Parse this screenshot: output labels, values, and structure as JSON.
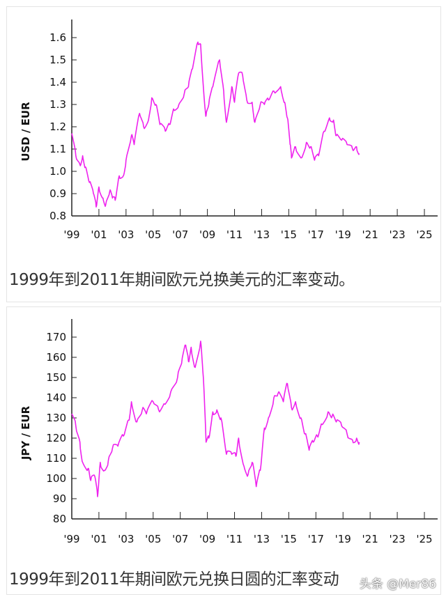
{
  "chart_data": [
    {
      "type": "line",
      "title": "",
      "xlabel": "",
      "ylabel": "USD / EUR",
      "xlim": [
        1999,
        2025.9
      ],
      "ylim": [
        0.8,
        1.7
      ],
      "yticks": [
        0.8,
        0.9,
        1.0,
        1.1,
        1.2,
        1.3,
        1.4,
        1.5,
        1.6
      ],
      "ytick_labels": [
        "0.8",
        "0.9",
        "1.0",
        "1.1",
        "1.2",
        "1.3",
        "1.4",
        "1.5",
        "1.6"
      ],
      "xticks": [
        1999,
        2001,
        2003,
        2005,
        2007,
        2009,
        2011,
        2013,
        2015,
        2017,
        2019,
        2021,
        2023,
        2025
      ],
      "xtick_labels": [
        "'99",
        "'01",
        "'03",
        "'05",
        "'07",
        "'09",
        "'11",
        "'13",
        "'15",
        "'17",
        "'19",
        "'21",
        "'23",
        "'25"
      ],
      "grid": false,
      "color": "#ee22ee",
      "series": [
        {
          "name": "USD/EUR",
          "x": [
            1999.0,
            1999.3,
            1999.6,
            1999.8,
            2000.0,
            2000.3,
            2000.6,
            2000.8,
            2001.0,
            2001.3,
            2001.5,
            2001.8,
            2002.0,
            2002.2,
            2002.5,
            2002.8,
            2003.0,
            2003.4,
            2003.6,
            2004.0,
            2004.3,
            2004.6,
            2004.9,
            2005.2,
            2005.5,
            2005.9,
            2006.2,
            2006.5,
            2006.9,
            2007.3,
            2007.6,
            2007.9,
            2008.3,
            2008.5,
            2008.8,
            2008.9,
            2009.1,
            2009.4,
            2009.9,
            2010.2,
            2010.4,
            2010.8,
            2011.0,
            2011.3,
            2011.6,
            2011.9,
            2012.3,
            2012.5,
            2012.9,
            2013.2,
            2013.5,
            2013.9,
            2014.4,
            2014.7,
            2014.9,
            2015.1,
            2015.2,
            2015.5,
            2015.9,
            2016.3,
            2016.6,
            2016.9,
            2017.2,
            2017.6,
            2018.0,
            2018.3,
            2018.5,
            2018.9,
            2019.3,
            2019.7,
            2020.0,
            2020.2
          ],
          "y": [
            1.17,
            1.07,
            1.03,
            1.07,
            1.02,
            0.95,
            0.9,
            0.84,
            0.93,
            0.88,
            0.85,
            0.91,
            0.88,
            0.87,
            0.98,
            0.98,
            1.05,
            1.16,
            1.12,
            1.26,
            1.2,
            1.22,
            1.33,
            1.3,
            1.21,
            1.18,
            1.21,
            1.28,
            1.3,
            1.35,
            1.38,
            1.46,
            1.58,
            1.57,
            1.3,
            1.25,
            1.3,
            1.38,
            1.5,
            1.36,
            1.22,
            1.38,
            1.31,
            1.44,
            1.43,
            1.32,
            1.31,
            1.22,
            1.3,
            1.3,
            1.32,
            1.36,
            1.38,
            1.31,
            1.24,
            1.12,
            1.06,
            1.11,
            1.06,
            1.13,
            1.11,
            1.05,
            1.07,
            1.18,
            1.24,
            1.23,
            1.16,
            1.14,
            1.12,
            1.1,
            1.11,
            1.08
          ]
        }
      ]
    },
    {
      "type": "line",
      "title": "",
      "xlabel": "",
      "ylabel": "JPY / EUR",
      "xlim": [
        1999,
        2025.9
      ],
      "ylim": [
        80,
        180
      ],
      "yticks": [
        80,
        90,
        100,
        110,
        120,
        130,
        140,
        150,
        160,
        170
      ],
      "ytick_labels": [
        "80",
        "90",
        "100",
        "110",
        "120",
        "130",
        "140",
        "150",
        "160",
        "170"
      ],
      "xticks": [
        1999,
        2001,
        2003,
        2005,
        2007,
        2009,
        2011,
        2013,
        2015,
        2017,
        2019,
        2021,
        2023,
        2025
      ],
      "xtick_labels": [
        "'99",
        "'01",
        "'03",
        "'05",
        "'07",
        "'09",
        "'11",
        "'13",
        "'15",
        "'17",
        "'19",
        "'21",
        "'23",
        "'25"
      ],
      "grid": false,
      "color": "#ee22ee",
      "series": [
        {
          "name": "JPY/EUR",
          "x": [
            1999.0,
            1999.3,
            1999.6,
            1999.8,
            2000.2,
            2000.4,
            2000.7,
            2000.9,
            2001.1,
            2001.4,
            2001.7,
            2002.0,
            2002.4,
            2002.8,
            2003.2,
            2003.4,
            2003.8,
            2004.2,
            2004.5,
            2005.0,
            2005.4,
            2005.8,
            2006.3,
            2006.8,
            2007.1,
            2007.4,
            2007.6,
            2007.8,
            2008.1,
            2008.5,
            2008.7,
            2008.9,
            2009.1,
            2009.4,
            2009.7,
            2010.0,
            2010.4,
            2010.8,
            2011.1,
            2011.3,
            2011.7,
            2012.0,
            2012.3,
            2012.6,
            2012.9,
            2013.2,
            2013.5,
            2013.9,
            2014.2,
            2014.6,
            2014.9,
            2015.2,
            2015.5,
            2015.9,
            2016.2,
            2016.5,
            2016.8,
            2017.1,
            2017.4,
            2017.9,
            2018.2,
            2018.5,
            2018.9,
            2019.3,
            2019.7,
            2020.0,
            2020.2
          ],
          "y": [
            132,
            126,
            118,
            108,
            105,
            99,
            101,
            91,
            108,
            104,
            109,
            115,
            116,
            121,
            129,
            138,
            128,
            134,
            132,
            138,
            134,
            137,
            143,
            150,
            157,
            166,
            158,
            165,
            155,
            168,
            150,
            118,
            120,
            133,
            134,
            130,
            112,
            112,
            111,
            120,
            106,
            102,
            108,
            96,
            104,
            125,
            130,
            140,
            142,
            138,
            147,
            135,
            138,
            130,
            122,
            114,
            118,
            121,
            127,
            133,
            131,
            128,
            126,
            122,
            119,
            120,
            118
          ]
        }
      ]
    }
  ],
  "captions": [
    "1999年到2011年期间欧元兑换美元的汇率变动。",
    "1999年到2011年期间欧元兑换日圆的汇率变动"
  ],
  "watermark": "头条 @Mer86"
}
